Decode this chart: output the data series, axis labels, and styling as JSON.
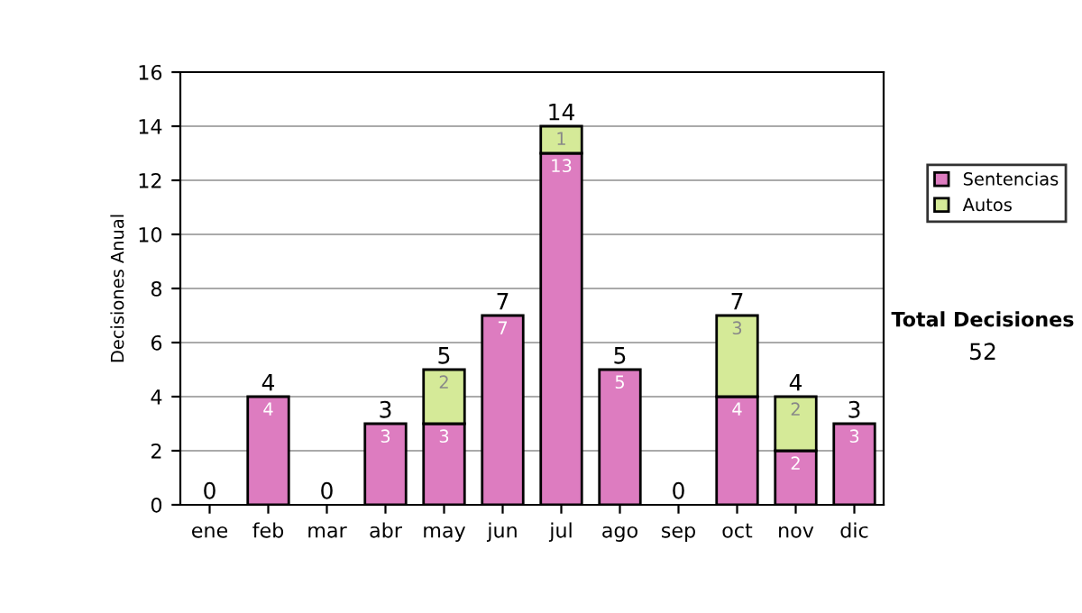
{
  "chart_data": {
    "type": "bar",
    "stacked": true,
    "ylabel": "Decisiones Anual",
    "categories": [
      "ene",
      "feb",
      "mar",
      "abr",
      "may",
      "jun",
      "jul",
      "ago",
      "sep",
      "oct",
      "nov",
      "dic"
    ],
    "series": [
      {
        "name": "Sentencias",
        "color": "#dd7cc0",
        "values": [
          0,
          4,
          0,
          3,
          3,
          7,
          13,
          5,
          0,
          4,
          2,
          3
        ],
        "value_labels": [
          null,
          "4",
          null,
          "3",
          "3",
          "7",
          "13",
          "5",
          null,
          "4",
          "2",
          "3"
        ]
      },
      {
        "name": "Autos",
        "color": "#d5ea98",
        "values": [
          0,
          0,
          0,
          0,
          2,
          0,
          1,
          0,
          0,
          3,
          2,
          0
        ],
        "value_labels": [
          null,
          null,
          null,
          null,
          "2",
          null,
          "1",
          null,
          null,
          "3",
          "2",
          null
        ]
      }
    ],
    "totals": [
      "0",
      "4",
      "0",
      "3",
      "5",
      "7",
      "14",
      "5",
      "0",
      "7",
      "4",
      "3"
    ],
    "ylim": [
      0,
      16
    ],
    "yticks": [
      0,
      2,
      4,
      6,
      8,
      10,
      12,
      14,
      16
    ],
    "grid": "y",
    "legend": "right",
    "annotations": [
      "Total Decisiones",
      "52"
    ]
  }
}
